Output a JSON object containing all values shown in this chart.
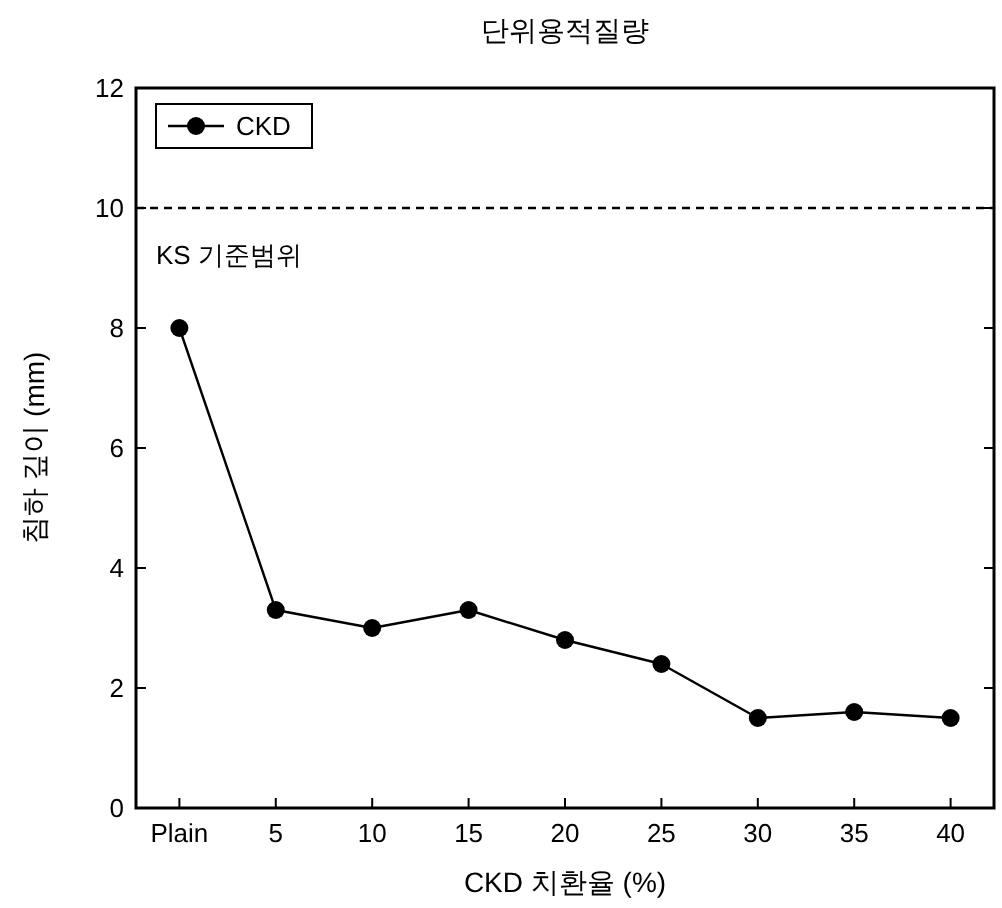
{
  "chart_data": {
    "type": "line",
    "title": "단위용적질량",
    "xlabel": "CKD 치환율 (%)",
    "ylabel": "침하 깊이 (mm)",
    "categories": [
      "Plain",
      "5",
      "10",
      "15",
      "20",
      "25",
      "30",
      "35",
      "40"
    ],
    "series": [
      {
        "name": "CKD",
        "color": "#000000",
        "values": [
          8.0,
          3.3,
          3.0,
          3.3,
          2.8,
          2.4,
          1.5,
          1.6,
          1.5
        ]
      }
    ],
    "ylim": [
      0,
      12
    ],
    "yticks": [
      0,
      2,
      4,
      6,
      8,
      10,
      12
    ],
    "grid": false,
    "legend": "top left",
    "marker": "circle",
    "line_style": "solid",
    "ref_lines": [
      {
        "axis": "y",
        "value": 10,
        "label": "KS 기준범위",
        "line_style": "dashed",
        "color": "#000000"
      }
    ]
  }
}
